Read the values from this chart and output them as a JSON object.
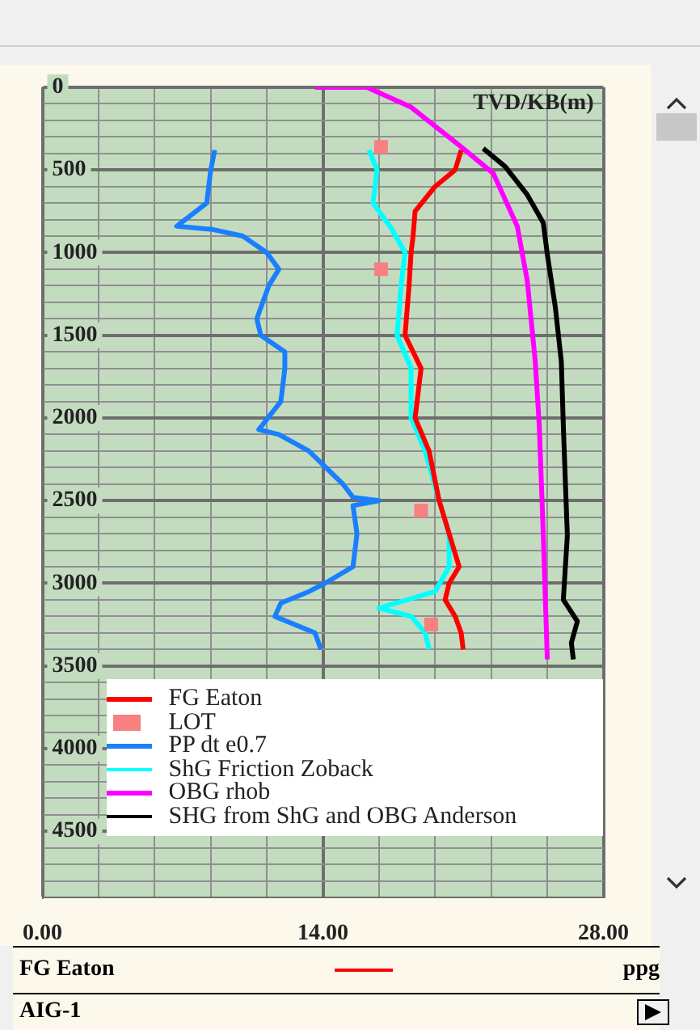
{
  "chart_data": {
    "type": "line",
    "ylabel": "TVD/KB(m)",
    "xlabel": "ppg",
    "xlim": [
      0,
      28
    ],
    "ylim": [
      4900,
      0
    ],
    "xticks": [
      {
        "value": 0,
        "label": "0.00"
      },
      {
        "value": 2.8,
        "label": null
      },
      {
        "value": 5.6,
        "label": null
      },
      {
        "value": 8.4,
        "label": null
      },
      {
        "value": 11.2,
        "label": null
      },
      {
        "value": 14,
        "label": "14.00"
      },
      {
        "value": 16.8,
        "label": null
      },
      {
        "value": 19.6,
        "label": null
      },
      {
        "value": 22.4,
        "label": null
      },
      {
        "value": 25.2,
        "label": null
      },
      {
        "value": 28,
        "label": "28.00"
      }
    ],
    "yticks": [
      0,
      {
        "value": 100,
        "label": null
      },
      {
        "value": 200,
        "label": null
      },
      {
        "value": 300,
        "label": null
      },
      {
        "value": 400,
        "label": null
      },
      500,
      {
        "value": 600,
        "label": null
      },
      {
        "value": 700,
        "label": null
      },
      {
        "value": 800,
        "label": null
      },
      {
        "value": 900,
        "label": null
      },
      1000,
      {
        "value": 1100,
        "label": null
      },
      {
        "value": 1200,
        "label": null
      },
      {
        "value": 1300,
        "label": null
      },
      {
        "value": 1400,
        "label": null
      },
      1500,
      {
        "value": 1600,
        "label": null
      },
      {
        "value": 1700,
        "label": null
      },
      {
        "value": 1800,
        "label": null
      },
      {
        "value": 1900,
        "label": null
      },
      2000,
      {
        "value": 2100,
        "label": null
      },
      {
        "value": 2200,
        "label": null
      },
      {
        "value": 2300,
        "label": null
      },
      {
        "value": 2400,
        "label": null
      },
      2500,
      {
        "value": 2600,
        "label": null
      },
      {
        "value": 2700,
        "label": null
      },
      {
        "value": 2800,
        "label": null
      },
      {
        "value": 2900,
        "label": null
      },
      3000,
      {
        "value": 3100,
        "label": null
      },
      {
        "value": 3200,
        "label": null
      },
      {
        "value": 3300,
        "label": null
      },
      {
        "value": 3400,
        "label": null
      },
      3500,
      {
        "value": 3600,
        "label": null
      },
      {
        "value": 3700,
        "label": null
      },
      {
        "value": 3800,
        "label": null
      },
      {
        "value": 3900,
        "label": null
      },
      4000,
      {
        "value": 4100,
        "label": null
      },
      {
        "value": 4200,
        "label": null
      },
      {
        "value": 4300,
        "label": null
      },
      {
        "value": 4400,
        "label": null
      },
      4500,
      {
        "value": 4600,
        "label": null
      },
      {
        "value": 4700,
        "label": null
      },
      {
        "value": 4800,
        "label": null
      }
    ],
    "grid": true,
    "legend": "bottom left",
    "marker": "none",
    "line_style": "solid",
    "series": [
      {
        "name": "FG Eaton",
        "color": "#ff0000",
        "x": [
          20.9,
          20.6,
          19.6,
          18.6,
          18.5,
          18.4,
          18.3,
          18.1,
          18.9,
          18.6,
          19.3,
          19.8,
          20.3,
          20.8,
          20.3,
          20.1,
          20.6,
          20.9,
          21.0
        ],
        "values": [
          380,
          500,
          600,
          750,
          900,
          1000,
          1200,
          1500,
          1700,
          2000,
          2200,
          2500,
          2700,
          2900,
          3000,
          3100,
          3200,
          3300,
          3400
        ]
      },
      {
        "name": "LOT",
        "type": "scatter",
        "marker": "square",
        "color": "#f88080",
        "x": [
          16.9,
          16.9,
          18.9,
          19.4
        ],
        "values": [
          360,
          1100,
          2560,
          3250
        ]
      },
      {
        "name": "PP dt e0.7",
        "color": "#1a7fff",
        "x": [
          8.6,
          8.4,
          8.2,
          6.7,
          8.5,
          10.0,
          11.2,
          11.8,
          11.3,
          11.0,
          10.7,
          10.9,
          12.1,
          12.1,
          11.9,
          10.8,
          11.8,
          13.3,
          15.0,
          15.5,
          16.8,
          15.5,
          15.7,
          15.5,
          14.1,
          13.3,
          11.9,
          11.6,
          13.6,
          13.9
        ],
        "values": [
          380,
          500,
          700,
          840,
          860,
          900,
          1000,
          1100,
          1200,
          1300,
          1400,
          1500,
          1600,
          1700,
          1900,
          2070,
          2100,
          2200,
          2400,
          2480,
          2500,
          2530,
          2700,
          2900,
          3000,
          3050,
          3120,
          3200,
          3300,
          3400
        ]
      },
      {
        "name": "ShG Friction Zoback",
        "color": "#00ffff",
        "x": [
          16.3,
          16.7,
          16.5,
          17.4,
          18.1,
          17.9,
          17.7,
          18.4,
          18.4,
          19.1,
          19.8,
          20.3,
          20.3,
          19.6,
          16.8,
          18.4,
          19.1,
          19.3
        ],
        "values": [
          380,
          500,
          700,
          850,
          1000,
          1200,
          1500,
          1700,
          2000,
          2200,
          2500,
          2700,
          2900,
          3050,
          3150,
          3200,
          3300,
          3400
        ]
      },
      {
        "name": "OBG rhob",
        "color": "#ff00ff",
        "x": [
          13.6,
          16.2,
          18.4,
          20.8,
          22.5,
          23.7,
          24.2,
          24.6,
          24.8,
          25.0,
          25.2
        ],
        "values": [
          0,
          0,
          120,
          350,
          520,
          840,
          1170,
          1660,
          2050,
          2710,
          3460
        ]
      },
      {
        "name": "SHG from ShG and OBG Anderson",
        "color": "#000000",
        "x": [
          22.0,
          23.1,
          24.2,
          25.0,
          25.2,
          25.6,
          25.9,
          26.0,
          26.2,
          26.0,
          26.7,
          26.4,
          26.5
        ],
        "values": [
          370,
          480,
          650,
          820,
          1010,
          1330,
          1660,
          2050,
          2710,
          3100,
          3230,
          3360,
          3460
        ]
      }
    ],
    "annotations": [
      "FG Eaton",
      "AIG-1"
    ]
  }
}
